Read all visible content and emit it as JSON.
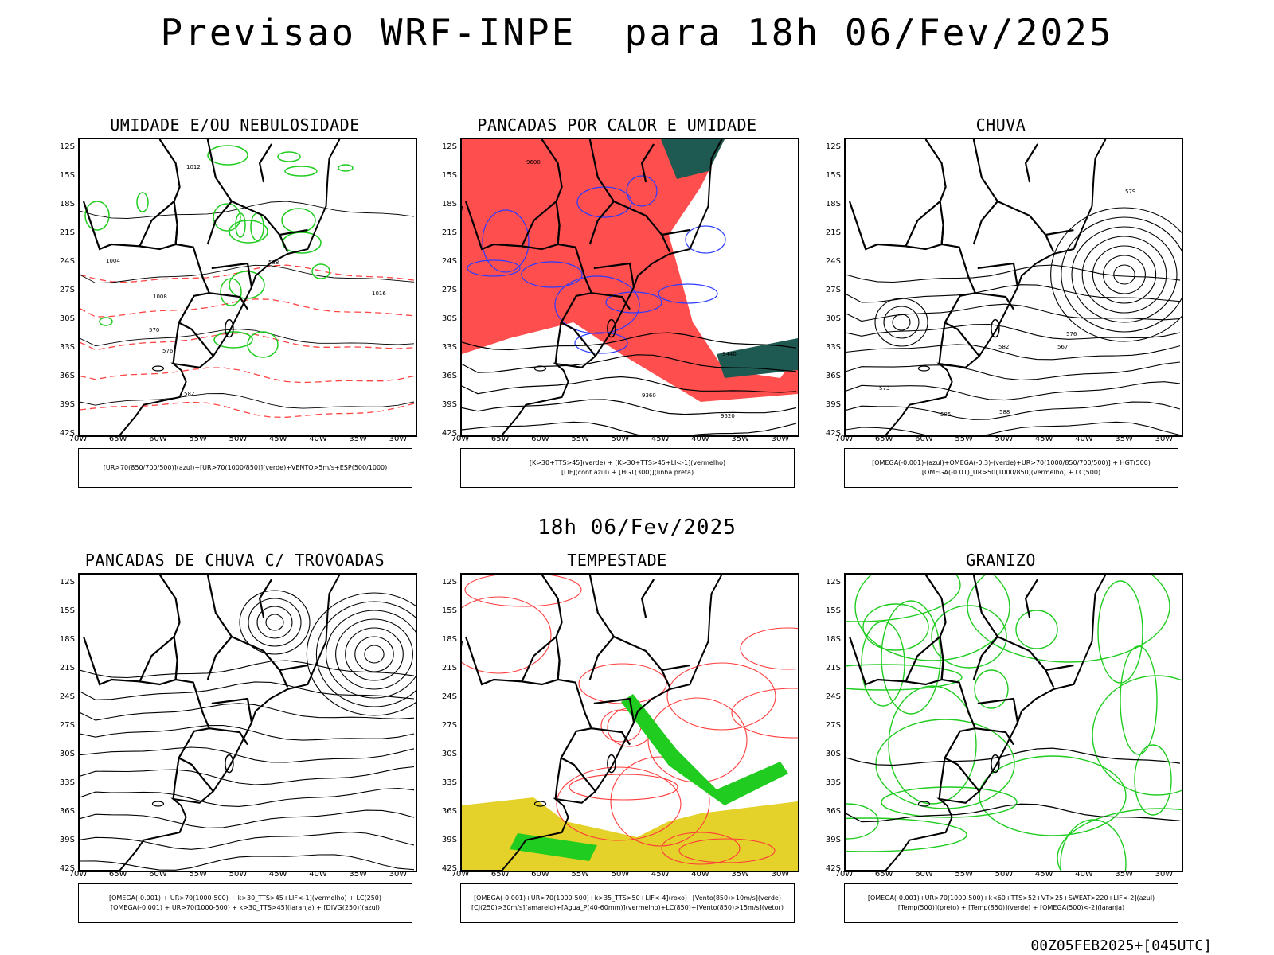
{
  "header": {
    "title": "Previsao WRF-INPE  para 18h 06/Fev/2025",
    "subtitle": "18h 06/Fev/2025",
    "footer": "00Z05FEB2025+[045UTC]"
  },
  "axes": {
    "lat_labels": [
      "12S",
      "15S",
      "18S",
      "21S",
      "24S",
      "27S",
      "30S",
      "33S",
      "36S",
      "39S",
      "42S"
    ],
    "lon_labels": [
      "70W",
      "65W",
      "60W",
      "55W",
      "50W",
      "45W",
      "40W",
      "35W",
      "30W"
    ]
  },
  "panels": [
    {
      "title": "UMIDADE E/OU NEBULOSIDADE",
      "legend": [
        "[UR>70(850/700/500)](azul)+[UR>70(1000/850)](verde)+VENTO>5m/s+ESP(500/1000)"
      ],
      "theme": "moisture",
      "colors": [
        "#b9b6ff",
        "#1fcc1f",
        "#ff3b3b"
      ],
      "contour_labels": [
        "1008",
        "1012",
        "1016",
        "1004",
        "570",
        "576",
        "582",
        "588"
      ]
    },
    {
      "title": "PANCADAS POR CALOR E UMIDADE",
      "legend": [
        "[K>30+TTS>45](verde) + [K>30+TTS>45+LI<-1](vermelho)",
        "[LIF](cont.azul) + [HGT(300)](linha preta)"
      ],
      "theme": "heat",
      "colors": [
        "#ff4444",
        "#1e5a52",
        "#2b3bff"
      ],
      "contour_labels": [
        "9600",
        "9520",
        "9440",
        "9360"
      ]
    },
    {
      "title": "CHUVA",
      "legend": [
        "[OMEGA(-0.001)-(azul)+OMEGA(-0.3)-(verde)+UR>70(1000/850/700/500)] + HGT(500)",
        "[OMEGA(-0.01)_UR>50(1000/850)(vermelho) + LC(500)"
      ],
      "theme": "rain",
      "colors": [
        "#2244ff",
        "#1fcc1f",
        "#ff3b3b"
      ],
      "contour_labels": [
        "582",
        "585",
        "588",
        "579",
        "576",
        "573",
        "567"
      ]
    },
    {
      "title": "PANCADAS DE CHUVA C/ TROVOADAS",
      "legend": [
        "[OMEGA(-0.001) + UR>70(1000-500) + k>30_TTS>45+LIF<-1](vermelho) + LC(250)",
        "[OMEGA(-0.001) + UR>70(1000-500) + k>30_TTS>45](laranja) + [DIVG(250)](azul)"
      ],
      "theme": "storms",
      "colors": [
        "#ff3b3b",
        "#ff8c1a",
        "#2244ff"
      ],
      "contour_labels": []
    },
    {
      "title": "TEMPESTADE",
      "legend": [
        "[OMEGA(-0.001)+UR>70(1000-500)+k>35_TTS>50+LIF<-4](roxo)+[Vento(850)>10m/s](verde)",
        "[CJ(250)>30m/s](amarelo)+[Agua_P(40-60mm)](vermelho)+LC(850)+[Vento(850)>15m/s](vetor)"
      ],
      "theme": "tempest",
      "colors": [
        "#e4d22a",
        "#1fcc1f",
        "#ff3b3b",
        "#b000d0"
      ],
      "contour_labels": []
    },
    {
      "title": "GRANIZO",
      "legend": [
        "[OMEGA(-0.001)+UR>70(1000-500)+k<60+TTS>52+VT>25+SWEAT>220+LIF<-2](azul)",
        "[Temp(500)](preto) + [Temp(850)](verde) + [OMEGA(500)<-2](laranja)"
      ],
      "theme": "hail",
      "colors": [
        "#1fcc1f",
        "#ff8c1a",
        "#2244ff"
      ],
      "contour_labels": []
    }
  ]
}
